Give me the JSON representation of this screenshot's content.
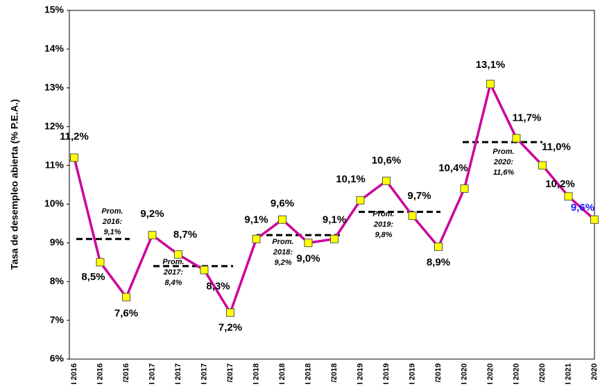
{
  "chart_data": {
    "type": "line",
    "y_label": "Tasa de desempleo abierta (% P.E.A.)",
    "categories": [
      "I 2016",
      "I 2016",
      "/2016",
      "I 2017",
      "I 2017",
      "I 2017",
      "/2017",
      "I 2018",
      "I 2018",
      "I 2018",
      "/2018",
      "I 2019",
      "I 2019",
      "I 2019",
      "/2019",
      "I 2020",
      "I 2020",
      "I 2020",
      "/2020",
      "I 2021",
      "2020"
    ],
    "series": [
      {
        "color": "#cc0099",
        "marker_color": "#ffff00",
        "values": [
          11.2,
          8.5,
          7.6,
          9.2,
          8.7,
          8.3,
          7.2,
          9.1,
          9.6,
          9.0,
          9.1,
          10.1,
          10.6,
          9.7,
          8.9,
          10.4,
          13.1,
          11.7,
          11.0,
          10.2,
          9.6
        ],
        "value_labels": [
          "11,2%",
          "8,5%",
          "7,6%",
          "9,2%",
          "8,7%",
          "8,3%",
          "7,2%",
          "9,1%",
          "9,6%",
          "9,0%",
          "9,1%",
          "10,1%",
          "10,6%",
          "9,7%",
          "8,9%",
          "10,4%",
          "13,1%",
          "11,7%",
          "11,0%",
          "10,2%",
          "9,6%"
        ],
        "highlight_color": "#1a1aff"
      }
    ],
    "averages": [
      {
        "value": 9.1,
        "label": [
          "Prom.",
          "2016:",
          "9,1%"
        ]
      },
      {
        "value": 8.4,
        "label": [
          "Prom.",
          "2017:",
          "8,4%"
        ]
      },
      {
        "value": 9.2,
        "label": [
          "Prom.",
          "2018:",
          "9,2%"
        ]
      },
      {
        "value": 9.8,
        "label": [
          "Prom.",
          "2019:",
          "9,8%"
        ]
      },
      {
        "value": 11.6,
        "label": [
          "Prom.",
          "2020:",
          "11,6%"
        ]
      }
    ],
    "ylim": [
      6,
      15
    ],
    "yticks": [
      {
        "value": 6,
        "label": "6%"
      },
      {
        "value": 7,
        "label": "7%"
      },
      {
        "value": 8,
        "label": "8%"
      },
      {
        "value": 9,
        "label": "9%"
      },
      {
        "value": 10,
        "label": "10%"
      },
      {
        "value": 11,
        "label": "11%"
      },
      {
        "value": 12,
        "label": "12%"
      },
      {
        "value": 13,
        "label": "13%"
      },
      {
        "value": 14,
        "label": "14%"
      },
      {
        "value": 15,
        "label": "15%"
      }
    ]
  }
}
